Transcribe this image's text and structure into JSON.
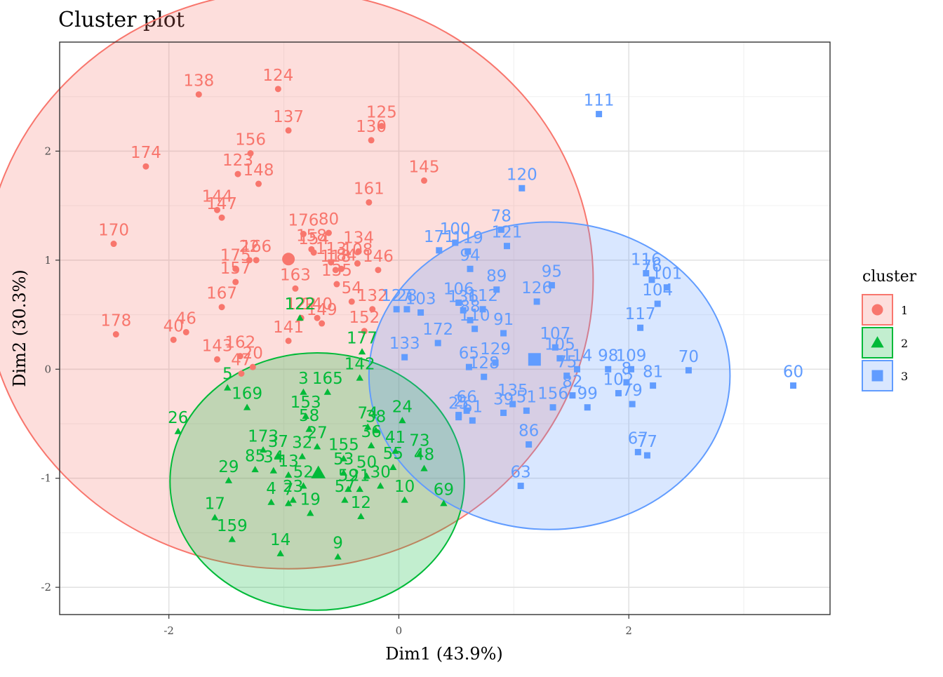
{
  "chart_data": {
    "type": "scatter",
    "title": "Cluster plot",
    "xlabel": "Dim1 (43.9%)",
    "ylabel": "Dim2 (30.3%)",
    "xlim": [
      -2.95,
      3.75
    ],
    "ylim": [
      -2.25,
      3.0
    ],
    "x_ticks": [
      -2,
      0,
      2
    ],
    "y_ticks": [
      -2,
      -1,
      0,
      1,
      2
    ],
    "x_tick_labels": [
      "-2",
      "0",
      "2"
    ],
    "y_tick_labels": [
      "-2",
      "-1",
      "0",
      "1",
      "2"
    ],
    "grid": true,
    "legend": {
      "title": "cluster",
      "position": "right",
      "labels": [
        "1",
        "2",
        "3"
      ]
    },
    "series": [
      {
        "name": "1",
        "color": "#F8766D",
        "shape": "circle",
        "center": [
          -0.96,
          1.01
        ],
        "ellipse": {
          "cx": -0.96,
          "cy": 0.82,
          "rx": 2.65,
          "ry": 2.65
        },
        "points": [
          {
            "label": "138",
            "x": -1.74,
            "y": 2.52
          },
          {
            "label": "124",
            "x": -1.05,
            "y": 2.57
          },
          {
            "label": "137",
            "x": -0.96,
            "y": 2.19
          },
          {
            "label": "125",
            "x": -0.15,
            "y": 2.23
          },
          {
            "label": "130",
            "x": -0.24,
            "y": 2.1
          },
          {
            "label": "174",
            "x": -2.2,
            "y": 1.86
          },
          {
            "label": "156",
            "x": -1.29,
            "y": 1.98
          },
          {
            "label": "123",
            "x": -1.4,
            "y": 1.79
          },
          {
            "label": "148",
            "x": -1.22,
            "y": 1.7
          },
          {
            "label": "145",
            "x": 0.22,
            "y": 1.73
          },
          {
            "label": "144",
            "x": -1.58,
            "y": 1.46
          },
          {
            "label": "147",
            "x": -1.54,
            "y": 1.39
          },
          {
            "label": "161",
            "x": -0.26,
            "y": 1.53
          },
          {
            "label": "176",
            "x": -0.83,
            "y": 1.24
          },
          {
            "label": "80",
            "x": -0.61,
            "y": 1.25
          },
          {
            "label": "170",
            "x": -2.48,
            "y": 1.15
          },
          {
            "label": "158",
            "x": -0.76,
            "y": 1.1
          },
          {
            "label": "154",
            "x": -0.74,
            "y": 1.07
          },
          {
            "label": "134",
            "x": -0.35,
            "y": 1.08
          },
          {
            "label": "22",
            "x": -1.3,
            "y": 1.0
          },
          {
            "label": "166",
            "x": -1.24,
            "y": 1.0
          },
          {
            "label": "175",
            "x": -1.42,
            "y": 0.92
          },
          {
            "label": "113",
            "x": -0.59,
            "y": 0.98
          },
          {
            "label": "108",
            "x": -0.36,
            "y": 0.97
          },
          {
            "label": "146",
            "x": -0.18,
            "y": 0.91
          },
          {
            "label": "118",
            "x": -0.55,
            "y": 0.91
          },
          {
            "label": "184",
            "x": -0.5,
            "y": 0.92
          },
          {
            "label": "157",
            "x": -1.42,
            "y": 0.8
          },
          {
            "label": "163",
            "x": -0.9,
            "y": 0.74
          },
          {
            "label": "135",
            "x": -0.54,
            "y": 0.78
          },
          {
            "label": "167",
            "x": -1.54,
            "y": 0.57
          },
          {
            "label": "54",
            "x": -0.41,
            "y": 0.62
          },
          {
            "label": "132",
            "x": -0.23,
            "y": 0.55
          },
          {
            "label": "122",
            "x": -0.85,
            "y": 0.47
          },
          {
            "label": "140",
            "x": -0.71,
            "y": 0.47
          },
          {
            "label": "149",
            "x": -0.67,
            "y": 0.42
          },
          {
            "label": "152",
            "x": -0.3,
            "y": 0.35
          },
          {
            "label": "178",
            "x": -2.46,
            "y": 0.32
          },
          {
            "label": "46",
            "x": -1.85,
            "y": 0.34
          },
          {
            "label": "40",
            "x": -1.96,
            "y": 0.27
          },
          {
            "label": "141",
            "x": -0.96,
            "y": 0.26
          },
          {
            "label": "143",
            "x": -1.58,
            "y": 0.09
          },
          {
            "label": "162",
            "x": -1.38,
            "y": 0.12
          },
          {
            "label": "47",
            "x": -1.37,
            "y": -0.04
          },
          {
            "label": "20",
            "x": -1.27,
            "y": 0.02
          }
        ]
      },
      {
        "name": "2",
        "color": "#00BA38",
        "shape": "triangle",
        "center": [
          -0.7,
          -0.95
        ],
        "ellipse": {
          "cx": -0.71,
          "cy": -1.03,
          "rx": 1.28,
          "ry": 1.18
        },
        "points": [
          {
            "label": "122",
            "x": -0.86,
            "y": 0.47
          },
          {
            "label": "177",
            "x": -0.32,
            "y": 0.16
          },
          {
            "label": "142",
            "x": -0.34,
            "y": -0.08
          },
          {
            "label": "5",
            "x": -1.49,
            "y": -0.17
          },
          {
            "label": "3",
            "x": -0.83,
            "y": -0.21
          },
          {
            "label": "165",
            "x": -0.62,
            "y": -0.21
          },
          {
            "label": "169",
            "x": -1.32,
            "y": -0.35
          },
          {
            "label": "153",
            "x": -0.81,
            "y": -0.43
          },
          {
            "label": "24",
            "x": 0.03,
            "y": -0.47
          },
          {
            "label": "26",
            "x": -1.92,
            "y": -0.57
          },
          {
            "label": "58",
            "x": -0.78,
            "y": -0.55
          },
          {
            "label": "74",
            "x": -0.27,
            "y": -0.53
          },
          {
            "label": "38",
            "x": -0.2,
            "y": -0.56
          },
          {
            "label": "173",
            "x": -1.18,
            "y": -0.74
          },
          {
            "label": "27",
            "x": -0.71,
            "y": -0.71
          },
          {
            "label": "41",
            "x": -0.03,
            "y": -0.75
          },
          {
            "label": "73",
            "x": 0.18,
            "y": -0.78
          },
          {
            "label": "36",
            "x": -0.24,
            "y": -0.7
          },
          {
            "label": "37",
            "x": -1.05,
            "y": -0.79
          },
          {
            "label": "32",
            "x": -0.84,
            "y": -0.8
          },
          {
            "label": "155",
            "x": -0.48,
            "y": -0.82
          },
          {
            "label": "85",
            "x": -1.25,
            "y": -0.92
          },
          {
            "label": "34",
            "x": -1.09,
            "y": -0.93
          },
          {
            "label": "13",
            "x": -0.96,
            "y": -0.97
          },
          {
            "label": "53",
            "x": -0.48,
            "y": -0.95
          },
          {
            "label": "55",
            "x": -0.05,
            "y": -0.9
          },
          {
            "label": "48",
            "x": 0.22,
            "y": -0.91
          },
          {
            "label": "29",
            "x": -1.48,
            "y": -1.02
          },
          {
            "label": "50",
            "x": -0.28,
            "y": -0.98
          },
          {
            "label": "30",
            "x": -0.16,
            "y": -1.07
          },
          {
            "label": "52",
            "x": -0.83,
            "y": -1.07
          },
          {
            "label": "59",
            "x": -0.44,
            "y": -1.1
          },
          {
            "label": "21",
            "x": -0.34,
            "y": -1.1
          },
          {
            "label": "4",
            "x": -1.11,
            "y": -1.22
          },
          {
            "label": "7",
            "x": -0.96,
            "y": -1.23
          },
          {
            "label": "23",
            "x": -0.92,
            "y": -1.2
          },
          {
            "label": "57",
            "x": -0.47,
            "y": -1.2
          },
          {
            "label": "10",
            "x": 0.05,
            "y": -1.2
          },
          {
            "label": "69",
            "x": 0.39,
            "y": -1.23
          },
          {
            "label": "19",
            "x": -0.77,
            "y": -1.32
          },
          {
            "label": "12",
            "x": -0.33,
            "y": -1.35
          },
          {
            "label": "17",
            "x": -1.6,
            "y": -1.36
          },
          {
            "label": "159",
            "x": -1.45,
            "y": -1.56
          },
          {
            "label": "14",
            "x": -1.03,
            "y": -1.69
          },
          {
            "label": "9",
            "x": -0.53,
            "y": -1.72
          }
        ]
      },
      {
        "name": "3",
        "color": "#619CFF",
        "shape": "square",
        "center": [
          1.18,
          0.09
        ],
        "ellipse": {
          "cx": 1.31,
          "cy": -0.06,
          "rx": 1.57,
          "ry": 1.41
        },
        "points": [
          {
            "label": "111",
            "x": 1.74,
            "y": 2.34
          },
          {
            "label": "120",
            "x": 1.07,
            "y": 1.66
          },
          {
            "label": "78",
            "x": 0.89,
            "y": 1.28
          },
          {
            "label": "100",
            "x": 0.49,
            "y": 1.16
          },
          {
            "label": "171",
            "x": 0.35,
            "y": 1.09
          },
          {
            "label": "119",
            "x": 0.6,
            "y": 1.08
          },
          {
            "label": "121",
            "x": 0.94,
            "y": 1.13
          },
          {
            "label": "94",
            "x": 0.62,
            "y": 0.92
          },
          {
            "label": "116",
            "x": 2.15,
            "y": 0.88
          },
          {
            "label": "76",
            "x": 2.2,
            "y": 0.82
          },
          {
            "label": "101",
            "x": 2.33,
            "y": 0.75
          },
          {
            "label": "95",
            "x": 1.33,
            "y": 0.77
          },
          {
            "label": "89",
            "x": 0.85,
            "y": 0.73
          },
          {
            "label": "104",
            "x": 2.25,
            "y": 0.6
          },
          {
            "label": "126",
            "x": 1.2,
            "y": 0.62
          },
          {
            "label": "106",
            "x": 0.52,
            "y": 0.61
          },
          {
            "label": "112",
            "x": 0.73,
            "y": 0.55
          },
          {
            "label": "127",
            "x": -0.02,
            "y": 0.55
          },
          {
            "label": "103",
            "x": 0.19,
            "y": 0.52
          },
          {
            "label": "28",
            "x": 0.07,
            "y": 0.55
          },
          {
            "label": "136",
            "x": 0.56,
            "y": 0.54
          },
          {
            "label": "88",
            "x": 0.62,
            "y": 0.45
          },
          {
            "label": "117",
            "x": 2.1,
            "y": 0.38
          },
          {
            "label": "91",
            "x": 0.91,
            "y": 0.33
          },
          {
            "label": "172",
            "x": 0.34,
            "y": 0.24
          },
          {
            "label": "110",
            "x": 0.66,
            "y": 0.37
          },
          {
            "label": "107",
            "x": 1.36,
            "y": 0.2
          },
          {
            "label": "133",
            "x": 0.05,
            "y": 0.11
          },
          {
            "label": "105",
            "x": 1.4,
            "y": 0.1
          },
          {
            "label": "98",
            "x": 1.82,
            "y": 0.0
          },
          {
            "label": "109",
            "x": 2.02,
            "y": 0.0
          },
          {
            "label": "70",
            "x": 2.52,
            "y": -0.01
          },
          {
            "label": "60",
            "x": 3.43,
            "y": -0.15
          },
          {
            "label": "65",
            "x": 0.61,
            "y": 0.02
          },
          {
            "label": "129",
            "x": 0.84,
            "y": 0.06
          },
          {
            "label": "114",
            "x": 1.55,
            "y": 0.0
          },
          {
            "label": "75",
            "x": 1.46,
            "y": -0.06
          },
          {
            "label": "81",
            "x": 2.21,
            "y": -0.15
          },
          {
            "label": "102",
            "x": 1.91,
            "y": -0.22
          },
          {
            "label": "8",
            "x": 1.98,
            "y": -0.12
          },
          {
            "label": "79",
            "x": 2.03,
            "y": -0.32
          },
          {
            "label": "128",
            "x": 0.74,
            "y": -0.07
          },
          {
            "label": "82",
            "x": 1.51,
            "y": -0.24
          },
          {
            "label": "99",
            "x": 1.64,
            "y": -0.35
          },
          {
            "label": "156",
            "x": 1.34,
            "y": -0.35
          },
          {
            "label": "135",
            "x": 0.99,
            "y": -0.32
          },
          {
            "label": "51",
            "x": 1.11,
            "y": -0.38
          },
          {
            "label": "39",
            "x": 0.91,
            "y": -0.4
          },
          {
            "label": "66",
            "x": 0.59,
            "y": -0.38
          },
          {
            "label": "2",
            "x": 0.52,
            "y": -0.42
          },
          {
            "label": "25",
            "x": 0.52,
            "y": -0.44
          },
          {
            "label": "61",
            "x": 0.64,
            "y": -0.47
          },
          {
            "label": "86",
            "x": 1.13,
            "y": -0.69
          },
          {
            "label": "67",
            "x": 2.08,
            "y": -0.76
          },
          {
            "label": "77",
            "x": 2.16,
            "y": -0.79
          },
          {
            "label": "63",
            "x": 1.06,
            "y": -1.07
          }
        ]
      }
    ]
  }
}
